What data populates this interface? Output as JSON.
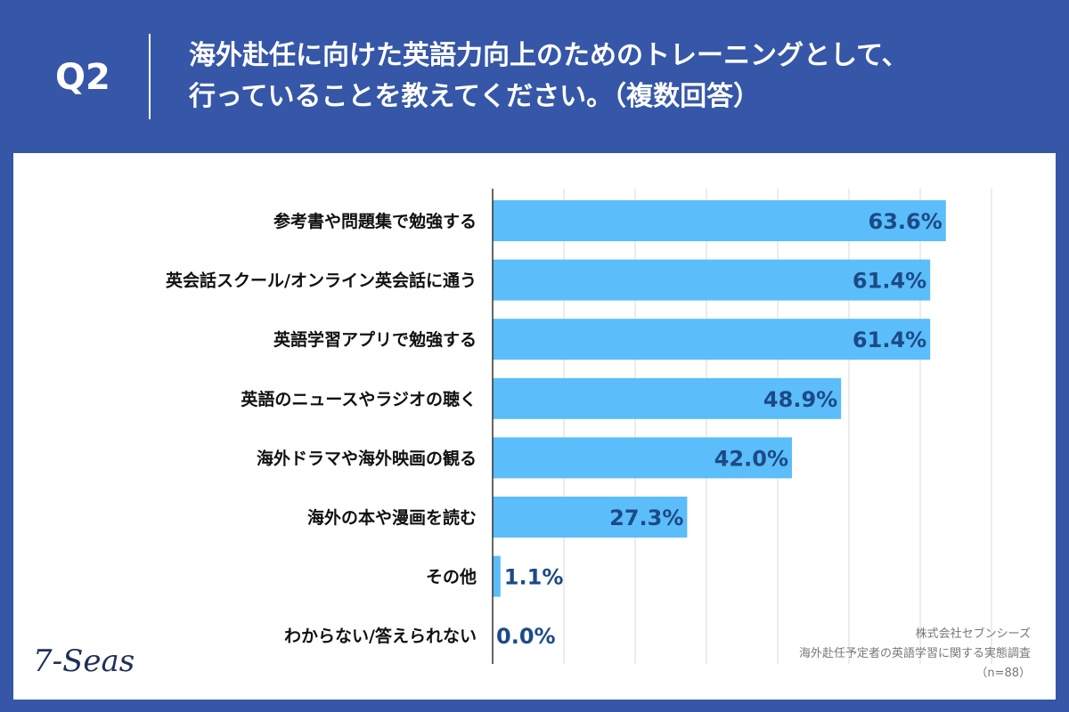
{
  "header": {
    "question_label": "Q2",
    "title_line1": "海外赴任に向けた英語力向上のためのトレーニングとして、",
    "title_line2": "行っていることを教えてください。（複数回答）"
  },
  "colors": {
    "background": "#3657a7",
    "panel": "#ffffff",
    "bar": "#5bbdfa",
    "value_text": "#1c4a86",
    "category_text": "#111111",
    "grid": "#d9d9d9"
  },
  "chart_data": {
    "type": "bar",
    "orientation": "horizontal",
    "categories": [
      "参考書や問題集で勉強する",
      "英会話スクール/オンライン英会話に通う",
      "英語学習アプリで勉強する",
      "英語のニュースやラジオの聴く",
      "海外ドラマや海外映画の観る",
      "海外の本や漫画を読む",
      "その他",
      "わからない/答えられない"
    ],
    "values": [
      63.6,
      61.4,
      61.4,
      48.9,
      42.0,
      27.3,
      1.1,
      0.0
    ],
    "value_labels": [
      "63.6%",
      "61.4%",
      "61.4%",
      "48.9%",
      "42.0%",
      "27.3%",
      "1.1%",
      "0.0%"
    ],
    "xlim": [
      0,
      70
    ],
    "grid": true
  },
  "credit": {
    "company": "株式会社セブンシーズ",
    "survey": "海外赴任予定者の英語学習に関する実態調査",
    "sample": "（n=88）"
  },
  "logo": {
    "text": "7-Seas"
  }
}
